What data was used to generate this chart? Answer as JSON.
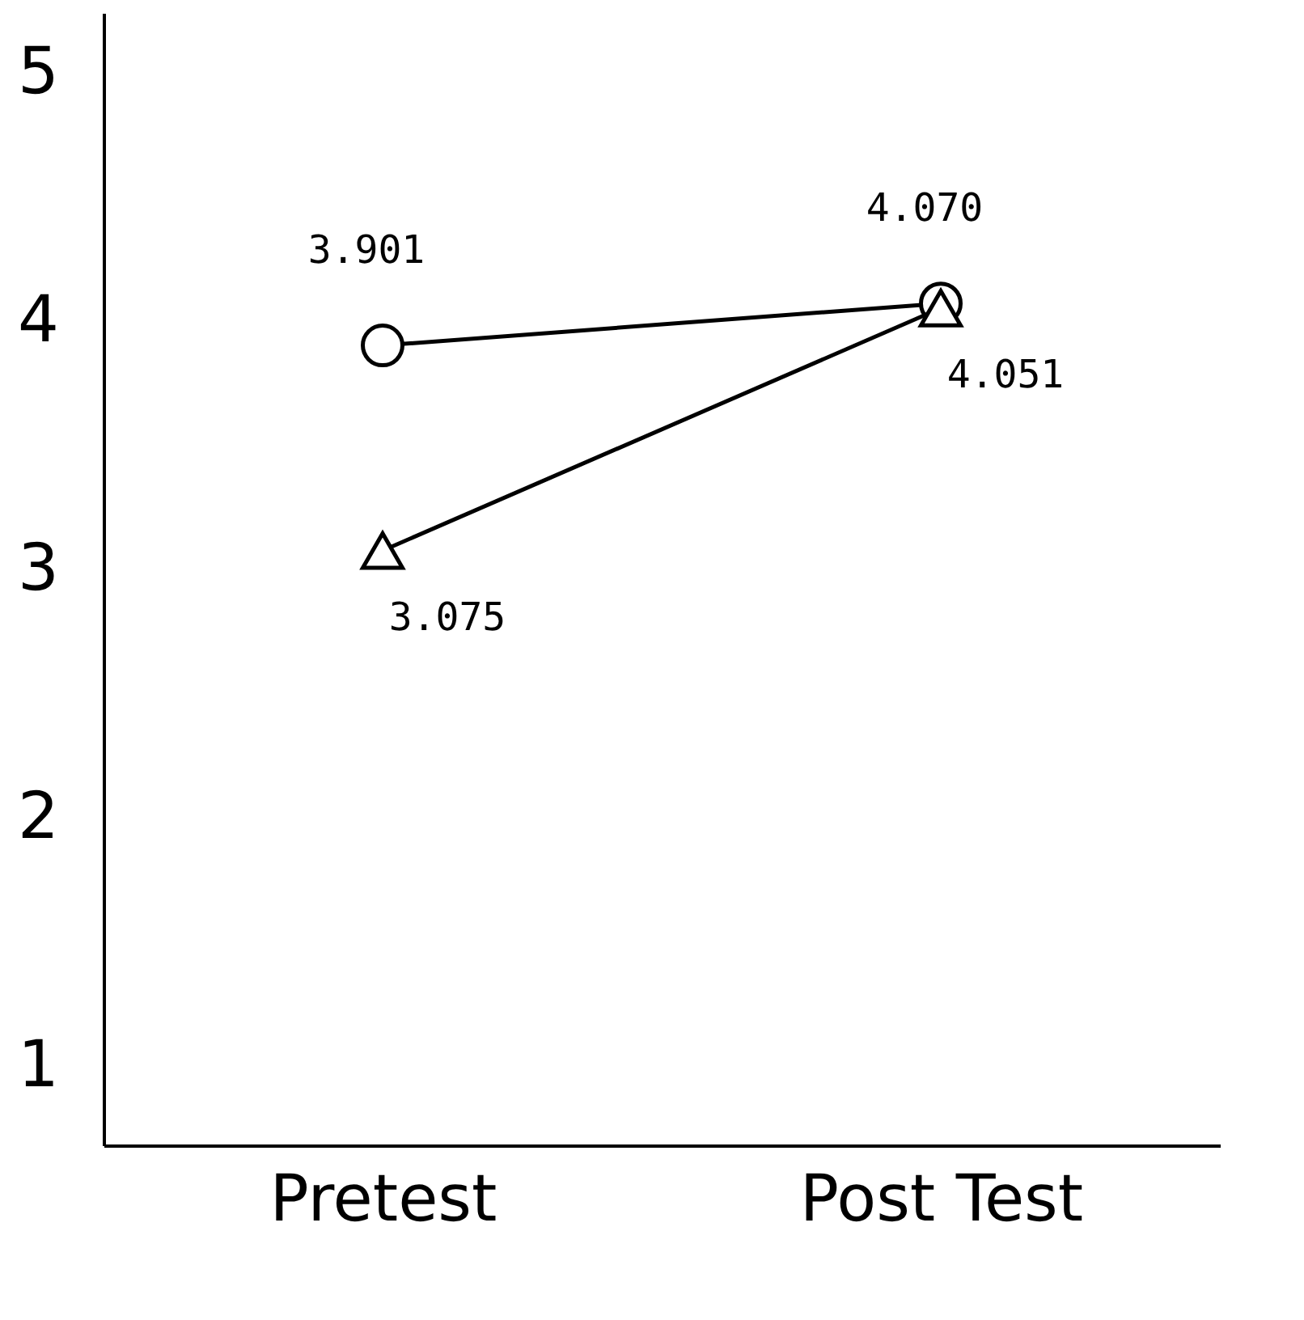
{
  "chart_data": {
    "type": "line",
    "categories": [
      "Pretest",
      "Post Test"
    ],
    "series": [
      {
        "color": "#000000",
        "marker": "circle",
        "values": [
          3.901,
          4.07
        ],
        "value_labels": [
          "3.901",
          "4.070"
        ]
      },
      {
        "color": "#000000",
        "marker": "triangle",
        "values": [
          3.075,
          4.051
        ],
        "value_labels": [
          "3.075",
          "4.051"
        ]
      }
    ],
    "ylim": [
      0.68,
      5.24
    ],
    "yticks": [
      1,
      2,
      3,
      4,
      5
    ],
    "grid": false
  }
}
